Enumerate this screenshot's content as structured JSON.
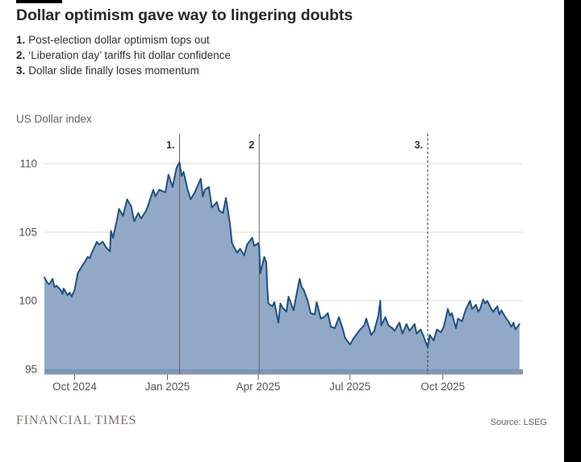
{
  "page": {
    "background": "#ffffff",
    "right_bar_color": "#000000"
  },
  "header": {
    "title": "Dollar optimism gave way to lingering doubts",
    "annotations": [
      {
        "num": "1.",
        "text": "Post-election dollar optimism tops out"
      },
      {
        "num": "2.",
        "text": "‘Liberation day’ tariffs hit dollar confidence"
      },
      {
        "num": "3.",
        "text": "Dollar slide finally loses momentum"
      }
    ]
  },
  "footer": {
    "brand": "FINANCIAL TIMES",
    "source": "Source: LSEG"
  },
  "chart_data": {
    "type": "area",
    "title": "US Dollar index",
    "ylabel": "US Dollar index",
    "xlabel": "",
    "grid": true,
    "legend": "none",
    "ylim": [
      95,
      110.5
    ],
    "yticks": [
      95,
      100,
      105,
      110
    ],
    "x_range": [
      "2024-09-01",
      "2025-12-19"
    ],
    "xticks": [
      {
        "date": "2024-10-01",
        "label": "Oct 2024"
      },
      {
        "date": "2025-01-01",
        "label": "Jan 2025"
      },
      {
        "date": "2025-04-01",
        "label": "Apr 2025"
      },
      {
        "date": "2025-07-01",
        "label": "Jul 2025"
      },
      {
        "date": "2025-10-01",
        "label": "Oct 2025"
      }
    ],
    "event_lines": [
      {
        "label": "1.",
        "date": "2025-01-13",
        "style": "solid"
      },
      {
        "label": "2",
        "date": "2025-04-02",
        "style": "solid"
      },
      {
        "label": "3.",
        "date": "2025-09-16",
        "style": "dashed"
      }
    ],
    "colors": {
      "line": "#1f5082",
      "fill": "#91a9c7",
      "baseline_band": "#8297b5",
      "gridline": "#e2d9d2",
      "event_line_solid": "#66605c",
      "event_line_dashed": "#33302e",
      "tick": "#66605c",
      "tick_label": "#57534e",
      "event_label": "#33302e"
    },
    "series": [
      {
        "name": "US Dollar index",
        "points": [
          {
            "d": "2024-09-01",
            "v": 101.7
          },
          {
            "d": "2024-09-04",
            "v": 101.3
          },
          {
            "d": "2024-09-06",
            "v": 101.2
          },
          {
            "d": "2024-09-09",
            "v": 101.6
          },
          {
            "d": "2024-09-11",
            "v": 101.0
          },
          {
            "d": "2024-09-13",
            "v": 101.1
          },
          {
            "d": "2024-09-17",
            "v": 100.8
          },
          {
            "d": "2024-09-19",
            "v": 100.5
          },
          {
            "d": "2024-09-20",
            "v": 100.9
          },
          {
            "d": "2024-09-24",
            "v": 100.4
          },
          {
            "d": "2024-09-26",
            "v": 100.6
          },
          {
            "d": "2024-09-28",
            "v": 100.3
          },
          {
            "d": "2024-10-01",
            "v": 100.8
          },
          {
            "d": "2024-10-04",
            "v": 102.0
          },
          {
            "d": "2024-10-09",
            "v": 102.6
          },
          {
            "d": "2024-10-14",
            "v": 103.2
          },
          {
            "d": "2024-10-16",
            "v": 103.1
          },
          {
            "d": "2024-10-18",
            "v": 103.5
          },
          {
            "d": "2024-10-23",
            "v": 104.3
          },
          {
            "d": "2024-10-25",
            "v": 104.1
          },
          {
            "d": "2024-10-29",
            "v": 104.3
          },
          {
            "d": "2024-11-01",
            "v": 103.9
          },
          {
            "d": "2024-11-05",
            "v": 103.6
          },
          {
            "d": "2024-11-06",
            "v": 105.1
          },
          {
            "d": "2024-11-08",
            "v": 104.6
          },
          {
            "d": "2024-11-12",
            "v": 105.9
          },
          {
            "d": "2024-11-14",
            "v": 106.7
          },
          {
            "d": "2024-11-18",
            "v": 106.2
          },
          {
            "d": "2024-11-22",
            "v": 107.4
          },
          {
            "d": "2024-11-26",
            "v": 106.9
          },
          {
            "d": "2024-11-29",
            "v": 105.8
          },
          {
            "d": "2024-12-03",
            "v": 106.4
          },
          {
            "d": "2024-12-06",
            "v": 106.0
          },
          {
            "d": "2024-12-11",
            "v": 106.6
          },
          {
            "d": "2024-12-13",
            "v": 107.0
          },
          {
            "d": "2024-12-18",
            "v": 108.1
          },
          {
            "d": "2024-12-20",
            "v": 107.6
          },
          {
            "d": "2024-12-24",
            "v": 108.1
          },
          {
            "d": "2024-12-30",
            "v": 107.9
          },
          {
            "d": "2025-01-02",
            "v": 109.2
          },
          {
            "d": "2025-01-06",
            "v": 108.3
          },
          {
            "d": "2025-01-08",
            "v": 109.0
          },
          {
            "d": "2025-01-10",
            "v": 109.7
          },
          {
            "d": "2025-01-13",
            "v": 110.1
          },
          {
            "d": "2025-01-15",
            "v": 109.1
          },
          {
            "d": "2025-01-17",
            "v": 109.4
          },
          {
            "d": "2025-01-21",
            "v": 108.1
          },
          {
            "d": "2025-01-24",
            "v": 107.4
          },
          {
            "d": "2025-01-28",
            "v": 107.9
          },
          {
            "d": "2025-01-31",
            "v": 108.4
          },
          {
            "d": "2025-02-03",
            "v": 108.9
          },
          {
            "d": "2025-02-05",
            "v": 107.6
          },
          {
            "d": "2025-02-07",
            "v": 108.1
          },
          {
            "d": "2025-02-11",
            "v": 108.3
          },
          {
            "d": "2025-02-14",
            "v": 106.8
          },
          {
            "d": "2025-02-19",
            "v": 107.2
          },
          {
            "d": "2025-02-21",
            "v": 106.6
          },
          {
            "d": "2025-02-25",
            "v": 106.4
          },
          {
            "d": "2025-02-28",
            "v": 107.5
          },
          {
            "d": "2025-03-04",
            "v": 105.6
          },
          {
            "d": "2025-03-06",
            "v": 104.2
          },
          {
            "d": "2025-03-11",
            "v": 103.5
          },
          {
            "d": "2025-03-14",
            "v": 103.8
          },
          {
            "d": "2025-03-18",
            "v": 103.3
          },
          {
            "d": "2025-03-21",
            "v": 104.1
          },
          {
            "d": "2025-03-26",
            "v": 104.6
          },
          {
            "d": "2025-03-28",
            "v": 104.0
          },
          {
            "d": "2025-04-01",
            "v": 104.2
          },
          {
            "d": "2025-04-02",
            "v": 103.9
          },
          {
            "d": "2025-04-03",
            "v": 102.0
          },
          {
            "d": "2025-04-07",
            "v": 103.2
          },
          {
            "d": "2025-04-09",
            "v": 102.8
          },
          {
            "d": "2025-04-10",
            "v": 100.9
          },
          {
            "d": "2025-04-11",
            "v": 99.8
          },
          {
            "d": "2025-04-15",
            "v": 99.6
          },
          {
            "d": "2025-04-17",
            "v": 99.9
          },
          {
            "d": "2025-04-21",
            "v": 98.4
          },
          {
            "d": "2025-04-23",
            "v": 99.8
          },
          {
            "d": "2025-04-25",
            "v": 99.5
          },
          {
            "d": "2025-04-29",
            "v": 99.2
          },
          {
            "d": "2025-05-01",
            "v": 100.3
          },
          {
            "d": "2025-05-06",
            "v": 99.3
          },
          {
            "d": "2025-05-08",
            "v": 100.1
          },
          {
            "d": "2025-05-12",
            "v": 101.6
          },
          {
            "d": "2025-05-14",
            "v": 101.0
          },
          {
            "d": "2025-05-16",
            "v": 100.8
          },
          {
            "d": "2025-05-20",
            "v": 100.0
          },
          {
            "d": "2025-05-23",
            "v": 99.1
          },
          {
            "d": "2025-05-27",
            "v": 99.0
          },
          {
            "d": "2025-05-29",
            "v": 99.9
          },
          {
            "d": "2025-06-02",
            "v": 98.7
          },
          {
            "d": "2025-06-05",
            "v": 98.8
          },
          {
            "d": "2025-06-09",
            "v": 99.1
          },
          {
            "d": "2025-06-12",
            "v": 98.1
          },
          {
            "d": "2025-06-16",
            "v": 98.0
          },
          {
            "d": "2025-06-20",
            "v": 98.8
          },
          {
            "d": "2025-06-24",
            "v": 97.9
          },
          {
            "d": "2025-06-26",
            "v": 97.3
          },
          {
            "d": "2025-07-01",
            "v": 96.8
          },
          {
            "d": "2025-07-04",
            "v": 97.2
          },
          {
            "d": "2025-07-08",
            "v": 97.6
          },
          {
            "d": "2025-07-11",
            "v": 97.9
          },
          {
            "d": "2025-07-15",
            "v": 98.2
          },
          {
            "d": "2025-07-17",
            "v": 98.7
          },
          {
            "d": "2025-07-22",
            "v": 97.5
          },
          {
            "d": "2025-07-25",
            "v": 97.8
          },
          {
            "d": "2025-07-29",
            "v": 98.9
          },
          {
            "d": "2025-07-31",
            "v": 100.0
          },
          {
            "d": "2025-08-01",
            "v": 98.2
          },
          {
            "d": "2025-08-05",
            "v": 98.8
          },
          {
            "d": "2025-08-08",
            "v": 98.2
          },
          {
            "d": "2025-08-12",
            "v": 98.0
          },
          {
            "d": "2025-08-14",
            "v": 97.8
          },
          {
            "d": "2025-08-19",
            "v": 98.4
          },
          {
            "d": "2025-08-22",
            "v": 97.6
          },
          {
            "d": "2025-08-26",
            "v": 98.3
          },
          {
            "d": "2025-08-29",
            "v": 97.8
          },
          {
            "d": "2025-09-03",
            "v": 98.3
          },
          {
            "d": "2025-09-05",
            "v": 97.6
          },
          {
            "d": "2025-09-09",
            "v": 97.9
          },
          {
            "d": "2025-09-12",
            "v": 97.4
          },
          {
            "d": "2025-09-16",
            "v": 96.6
          },
          {
            "d": "2025-09-18",
            "v": 97.5
          },
          {
            "d": "2025-09-22",
            "v": 97.1
          },
          {
            "d": "2025-09-25",
            "v": 97.9
          },
          {
            "d": "2025-09-29",
            "v": 97.7
          },
          {
            "d": "2025-10-02",
            "v": 98.1
          },
          {
            "d": "2025-10-06",
            "v": 99.4
          },
          {
            "d": "2025-10-08",
            "v": 98.9
          },
          {
            "d": "2025-10-10",
            "v": 99.1
          },
          {
            "d": "2025-10-14",
            "v": 98.0
          },
          {
            "d": "2025-10-16",
            "v": 98.7
          },
          {
            "d": "2025-10-20",
            "v": 98.5
          },
          {
            "d": "2025-10-24",
            "v": 99.4
          },
          {
            "d": "2025-10-28",
            "v": 100.0
          },
          {
            "d": "2025-10-30",
            "v": 99.4
          },
          {
            "d": "2025-11-03",
            "v": 99.7
          },
          {
            "d": "2025-11-05",
            "v": 99.2
          },
          {
            "d": "2025-11-07",
            "v": 99.4
          },
          {
            "d": "2025-11-10",
            "v": 100.1
          },
          {
            "d": "2025-11-12",
            "v": 99.8
          },
          {
            "d": "2025-11-14",
            "v": 100.0
          },
          {
            "d": "2025-11-18",
            "v": 99.4
          },
          {
            "d": "2025-11-20",
            "v": 99.2
          },
          {
            "d": "2025-11-24",
            "v": 99.6
          },
          {
            "d": "2025-11-26",
            "v": 99.0
          },
          {
            "d": "2025-11-28",
            "v": 99.3
          },
          {
            "d": "2025-12-02",
            "v": 98.8
          },
          {
            "d": "2025-12-04",
            "v": 98.6
          },
          {
            "d": "2025-12-08",
            "v": 98.1
          },
          {
            "d": "2025-12-10",
            "v": 98.4
          },
          {
            "d": "2025-12-12",
            "v": 97.9
          },
          {
            "d": "2025-12-16",
            "v": 98.3
          }
        ]
      }
    ]
  }
}
